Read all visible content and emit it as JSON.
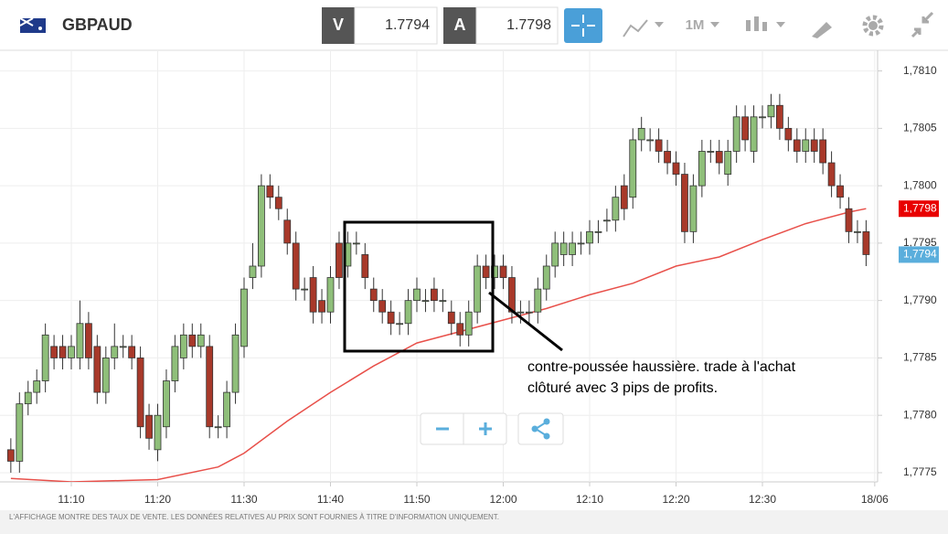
{
  "toolbar": {
    "symbol": "GBPAUD",
    "sell_label": "V",
    "sell_price": "1.7794",
    "buy_label": "A",
    "buy_price": "1.7798",
    "timeframe": "1M"
  },
  "chart_data": {
    "type": "candlestick",
    "x": [
      "11:03",
      "11:04",
      "11:05",
      "11:06",
      "11:07",
      "11:08",
      "11:09",
      "11:10",
      "11:11",
      "11:12",
      "11:13",
      "11:14",
      "11:15",
      "11:16",
      "11:17",
      "11:18",
      "11:19",
      "11:20",
      "11:21",
      "11:22",
      "11:23",
      "11:24",
      "11:25",
      "11:26",
      "11:27",
      "11:28",
      "11:29",
      "11:30",
      "11:31",
      "11:32",
      "11:33",
      "11:34",
      "11:35",
      "11:36",
      "11:37",
      "11:38",
      "11:39",
      "11:40",
      "11:41",
      "11:42",
      "11:43",
      "11:44",
      "11:45",
      "11:46",
      "11:47",
      "11:48",
      "11:49",
      "11:50",
      "11:51",
      "11:52",
      "11:53",
      "11:54",
      "11:55",
      "11:56",
      "11:57",
      "11:58",
      "11:59",
      "12:00",
      "12:01",
      "12:02",
      "12:03",
      "12:04",
      "12:05",
      "12:06",
      "12:07",
      "12:08",
      "12:09",
      "12:10",
      "12:11",
      "12:12",
      "12:13",
      "12:14",
      "12:15",
      "12:16",
      "12:17",
      "12:18",
      "12:19",
      "12:20",
      "12:21",
      "12:22",
      "12:23",
      "12:24",
      "12:25",
      "12:26",
      "12:27",
      "12:28",
      "12:29",
      "12:30",
      "12:31",
      "12:32",
      "12:33",
      "12:34",
      "12:35",
      "12:36",
      "12:37",
      "12:38",
      "12:39",
      "12:40",
      "12:41",
      "12:42"
    ],
    "open": [
      1.7777,
      1.7776,
      1.7781,
      1.7782,
      1.7783,
      1.7786,
      1.7786,
      1.7785,
      1.7785,
      1.7788,
      1.7786,
      1.7782,
      1.7785,
      1.7786,
      1.7786,
      1.7785,
      1.778,
      1.7777,
      1.7779,
      1.7783,
      1.7785,
      1.7787,
      1.7786,
      1.7786,
      1.7779,
      1.7779,
      1.7782,
      1.7786,
      1.7792,
      1.7793,
      1.78,
      1.7799,
      1.7797,
      1.7795,
      1.7791,
      1.7792,
      1.779,
      1.7789,
      1.7795,
      1.7793,
      1.7795,
      1.7794,
      1.7791,
      1.779,
      1.7789,
      1.7788,
      1.7788,
      1.779,
      1.779,
      1.7791,
      1.779,
      1.7789,
      1.7788,
      1.7787,
      1.7789,
      1.7793,
      1.7792,
      1.7793,
      1.7792,
      1.7789,
      1.7789,
      1.7789,
      1.7791,
      1.7793,
      1.7794,
      1.7794,
      1.7795,
      1.7795,
      1.7796,
      1.7797,
      1.7797,
      1.78,
      1.7799,
      1.7804,
      1.7804,
      1.7804,
      1.7803,
      1.7802,
      1.7801,
      1.7796,
      1.78,
      1.7803,
      1.7803,
      1.7801,
      1.7803,
      1.7806,
      1.7803,
      1.7806,
      1.7806,
      1.7807,
      1.7805,
      1.7804,
      1.7803,
      1.7804,
      1.7804,
      1.7802,
      1.78,
      1.7798,
      1.7796,
      1.7796
    ],
    "high": [
      1.7778,
      1.7782,
      1.7783,
      1.7784,
      1.7788,
      1.7787,
      1.7787,
      1.7787,
      1.779,
      1.7789,
      1.7787,
      1.7786,
      1.7788,
      1.7787,
      1.7787,
      1.7786,
      1.7781,
      1.7781,
      1.7784,
      1.7787,
      1.7788,
      1.7788,
      1.7788,
      1.7787,
      1.778,
      1.7783,
      1.7788,
      1.7792,
      1.7795,
      1.7801,
      1.7801,
      1.78,
      1.7798,
      1.7796,
      1.7792,
      1.7793,
      1.7791,
      1.7793,
      1.7796,
      1.7796,
      1.7796,
      1.7795,
      1.7792,
      1.7791,
      1.779,
      1.7789,
      1.7791,
      1.7792,
      1.7791,
      1.7792,
      1.7791,
      1.779,
      1.7789,
      1.779,
      1.7794,
      1.7794,
      1.7794,
      1.7794,
      1.7793,
      1.779,
      1.779,
      1.7792,
      1.7794,
      1.7796,
      1.7796,
      1.7796,
      1.7796,
      1.7797,
      1.7797,
      1.7798,
      1.78,
      1.7801,
      1.7805,
      1.7806,
      1.7805,
      1.7805,
      1.7804,
      1.7803,
      1.7802,
      1.7801,
      1.7804,
      1.7804,
      1.7804,
      1.7804,
      1.7807,
      1.7807,
      1.7807,
      1.7807,
      1.7808,
      1.7808,
      1.7806,
      1.7805,
      1.7805,
      1.7805,
      1.7805,
      1.7803,
      1.7801,
      1.7799,
      1.7797,
      1.7797
    ],
    "low": [
      1.7775,
      1.7775,
      1.778,
      1.7781,
      1.7782,
      1.7784,
      1.7784,
      1.7784,
      1.7784,
      1.7784,
      1.7781,
      1.7781,
      1.7784,
      1.7785,
      1.7784,
      1.7778,
      1.7777,
      1.7776,
      1.7778,
      1.7782,
      1.7784,
      1.7785,
      1.7785,
      1.7778,
      1.7778,
      1.7778,
      1.7781,
      1.7785,
      1.7791,
      1.7792,
      1.7798,
      1.7797,
      1.7794,
      1.779,
      1.779,
      1.7788,
      1.7788,
      1.7788,
      1.7791,
      1.7792,
      1.7794,
      1.7791,
      1.7789,
      1.7788,
      1.7787,
      1.7787,
      1.7787,
      1.7789,
      1.7789,
      1.7789,
      1.7789,
      1.7787,
      1.7786,
      1.7786,
      1.7788,
      1.7791,
      1.7791,
      1.7791,
      1.7788,
      1.7788,
      1.7788,
      1.7788,
      1.779,
      1.7792,
      1.7793,
      1.7793,
      1.7794,
      1.7794,
      1.7795,
      1.7796,
      1.7796,
      1.7797,
      1.7798,
      1.7803,
      1.7803,
      1.7802,
      1.7801,
      1.78,
      1.7795,
      1.7795,
      1.7799,
      1.7802,
      1.7801,
      1.78,
      1.7802,
      1.7803,
      1.7802,
      1.7805,
      1.7805,
      1.7804,
      1.7803,
      1.7802,
      1.7802,
      1.7802,
      1.7801,
      1.7799,
      1.7798,
      1.7795,
      1.7795,
      1.7793
    ],
    "close": [
      1.7776,
      1.7781,
      1.7782,
      1.7783,
      1.7787,
      1.7785,
      1.7785,
      1.7786,
      1.7788,
      1.7785,
      1.7782,
      1.7785,
      1.7786,
      1.7786,
      1.7785,
      1.7779,
      1.7778,
      1.778,
      1.7783,
      1.7786,
      1.7787,
      1.7786,
      1.7787,
      1.7779,
      1.7779,
      1.7782,
      1.7787,
      1.7791,
      1.7793,
      1.78,
      1.7799,
      1.7798,
      1.7795,
      1.7791,
      1.7791,
      1.7789,
      1.7789,
      1.7792,
      1.7792,
      1.7795,
      1.7795,
      1.7792,
      1.779,
      1.7789,
      1.7788,
      1.7788,
      1.779,
      1.7791,
      1.779,
      1.779,
      1.779,
      1.7788,
      1.7787,
      1.7789,
      1.7793,
      1.7792,
      1.7793,
      1.7792,
      1.7789,
      1.7789,
      1.7789,
      1.7791,
      1.7793,
      1.7795,
      1.7795,
      1.7795,
      1.7795,
      1.7796,
      1.7796,
      1.7797,
      1.7799,
      1.7798,
      1.7804,
      1.7805,
      1.7804,
      1.7803,
      1.7802,
      1.7801,
      1.7796,
      1.78,
      1.7803,
      1.7803,
      1.7802,
      1.7803,
      1.7806,
      1.7804,
      1.7806,
      1.7806,
      1.7807,
      1.7805,
      1.7804,
      1.7803,
      1.7804,
      1.7803,
      1.7802,
      1.78,
      1.7799,
      1.7796,
      1.7796,
      1.7794
    ],
    "up_color": "#8fbf7a",
    "down_color": "#a8392a",
    "ma": {
      "color": "#e8504a",
      "x": [
        "11:03",
        "11:10",
        "11:20",
        "11:27",
        "11:30",
        "11:35",
        "11:40",
        "11:45",
        "11:50",
        "11:55",
        "12:00",
        "12:05",
        "12:10",
        "12:15",
        "12:20",
        "12:25",
        "12:30",
        "12:35",
        "12:40",
        "12:42"
      ],
      "values": [
        1.77745,
        1.77742,
        1.77744,
        1.77755,
        1.77767,
        1.77795,
        1.7782,
        1.77843,
        1.77863,
        1.77873,
        1.77883,
        1.77893,
        1.77905,
        1.77915,
        1.7793,
        1.77938,
        1.77953,
        1.77967,
        1.77977,
        1.7798
      ]
    },
    "ylim": [
      1.77742,
      1.78118
    ],
    "yticks": [
      {
        "value": 1.781,
        "label": "1,7810"
      },
      {
        "value": 1.7805,
        "label": "1,7805"
      },
      {
        "value": 1.78,
        "label": "1,7800"
      },
      {
        "value": 1.7795,
        "label": "1,7795"
      },
      {
        "value": 1.779,
        "label": "1,7790"
      },
      {
        "value": 1.7785,
        "label": "1,7785"
      },
      {
        "value": 1.778,
        "label": "1,7780"
      },
      {
        "value": 1.7775,
        "label": "1,7775"
      }
    ],
    "xticks": [
      "11:10",
      "11:20",
      "11:30",
      "11:40",
      "11:50",
      "12:00",
      "12:10",
      "12:20",
      "12:30",
      {
        "value": "12:43",
        "label": "18/06"
      }
    ],
    "grid": true,
    "price_labels": [
      {
        "value": 1.7798,
        "label": "1,7798",
        "color": "#e80000"
      },
      {
        "value": 1.7794,
        "label": "1,7794",
        "color": "#5aaedc"
      }
    ],
    "annotation": [
      "contre-poussée haussière. trade à l'achat",
      "clôturé avec 3 pips de profits."
    ]
  },
  "footer": "L'AFFICHAGE MONTRE DES TAUX DE VENTE. LES DONNÉES RELATIVES AU PRIX SONT FOURNIES À TITRE D'INFORMATION UNIQUEMENT."
}
